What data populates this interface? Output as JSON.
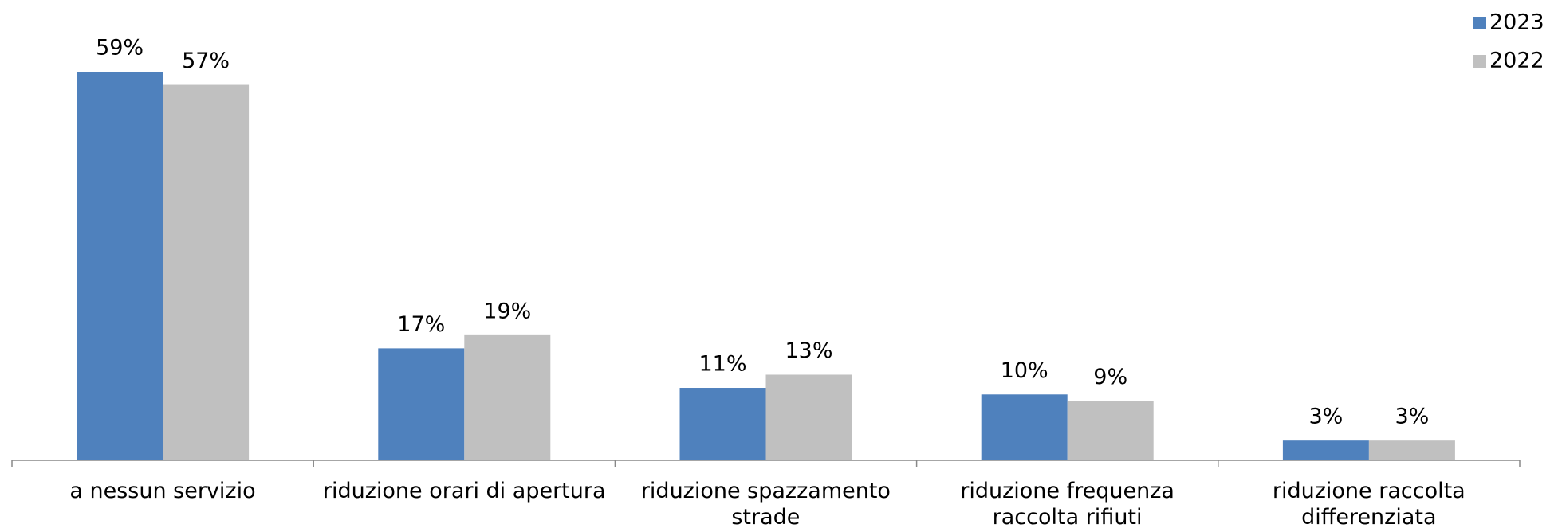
{
  "chart_data": {
    "type": "bar",
    "categories": [
      "a nessun servizio",
      "riduzione orari di apertura",
      "riduzione spazzamento strade",
      "riduzione frequenza raccolta rifiuti",
      "riduzione raccolta differenziata"
    ],
    "series": [
      {
        "name": "2023",
        "color": "#4f81bd",
        "values": [
          59,
          17,
          11,
          10,
          3
        ],
        "value_labels": [
          "59%",
          "17%",
          "11%",
          "10%",
          "3%"
        ]
      },
      {
        "name": "2022",
        "color": "#c0c0c0",
        "values": [
          57,
          19,
          13,
          9,
          3
        ],
        "value_labels": [
          "57%",
          "19%",
          "13%",
          "9%",
          "3%"
        ]
      }
    ],
    "legend": "top-right"
  }
}
